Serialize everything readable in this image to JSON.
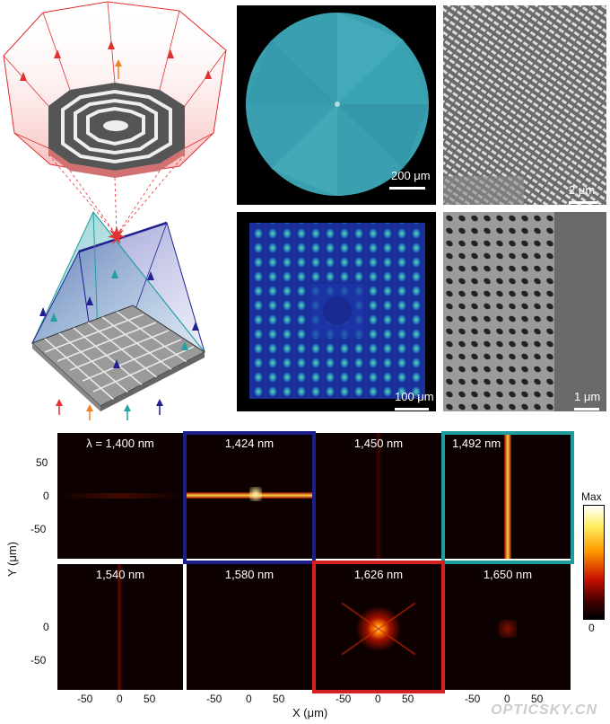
{
  "micrographs": {
    "circle_scale": "200 μm",
    "sem_top_scale": "2 μm",
    "square_scale": "100 μm",
    "sem_bottom_scale": "1 μm"
  },
  "maps": [
    {
      "label": "λ = 1,400 nm",
      "feature": "faint"
    },
    {
      "label": "1,424 nm",
      "feature": "horizontal",
      "frame_color": "#1b1f8a"
    },
    {
      "label": "1,450 nm",
      "feature": "faint"
    },
    {
      "label": "1,492 nm",
      "feature": "vertical",
      "frame_color": "#1f9c9c"
    },
    {
      "label": "1,540 nm",
      "feature": "faint-vertical"
    },
    {
      "label": "1,580 nm",
      "feature": "none"
    },
    {
      "label": "1,626 nm",
      "feature": "spot",
      "frame_color": "#d42020"
    },
    {
      "label": "1,650 nm",
      "feature": "faint-spot"
    }
  ],
  "axes": {
    "ylabel": "Y (μm)",
    "xlabel": "X (μm)",
    "yticks": [
      "50",
      "0",
      "-50"
    ],
    "xticks": [
      "-50",
      "0",
      "50"
    ]
  },
  "colorbar": {
    "max_label": "Max",
    "min_label": "0"
  },
  "arrow_colors": [
    "#e03030",
    "#f08020",
    "#20a0a0",
    "#202090"
  ],
  "watermark": "OPTICSKY.CN"
}
